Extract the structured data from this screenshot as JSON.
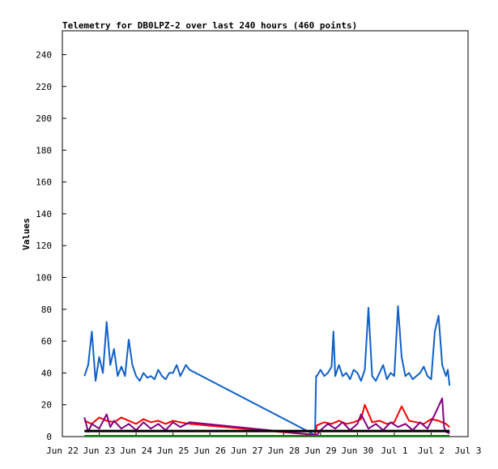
{
  "chart_data": {
    "type": "line",
    "title": "Telemetry for DB0LPZ-2 over last 240 hours (460 points)",
    "xlabel": "",
    "ylabel": "Values",
    "ylim": [
      0,
      255
    ],
    "yticks": [
      0,
      20,
      40,
      60,
      80,
      100,
      120,
      140,
      160,
      180,
      200,
      220,
      240
    ],
    "xlim": [
      "Jun 22",
      "Jul 3"
    ],
    "x_ticks": [
      "Jun 22",
      "Jun 23",
      "Jun 24",
      "Jun 25",
      "Jun 26",
      "Jun 27",
      "Jun 28",
      "Jun 29",
      "Jun 30",
      "Jul 1",
      "Jul 2",
      "Jul 3"
    ],
    "grid": false,
    "legend": "none",
    "series": [
      {
        "color": "#1060c8",
        "x": [
          0.6,
          0.7,
          0.8,
          0.9,
          1.0,
          1.1,
          1.2,
          1.3,
          1.4,
          1.5,
          1.6,
          1.7,
          1.8,
          1.9,
          2.0,
          2.1,
          2.2,
          2.3,
          2.4,
          2.5,
          2.6,
          2.7,
          2.8,
          2.9,
          3.0,
          3.1,
          3.2,
          3.35,
          3.45,
          6.85,
          6.88,
          6.9,
          7.0,
          7.1,
          7.2,
          7.3,
          7.35,
          7.4,
          7.5,
          7.6,
          7.7,
          7.8,
          7.9,
          8.0,
          8.1,
          8.2,
          8.3,
          8.4,
          8.5,
          8.6,
          8.7,
          8.8,
          8.9,
          9.0,
          9.1,
          9.2,
          9.3,
          9.4,
          9.5,
          9.6,
          9.7,
          9.8,
          9.9,
          10.0,
          10.1,
          10.2,
          10.3,
          10.4,
          10.45,
          10.5
        ],
        "y": [
          38,
          45,
          66,
          35,
          50,
          40,
          72,
          45,
          55,
          38,
          44,
          38,
          61,
          45,
          38,
          35,
          40,
          37,
          38,
          36,
          42,
          38,
          36,
          40,
          40,
          45,
          38,
          45,
          42,
          1,
          38,
          38,
          42,
          38,
          40,
          44,
          66,
          38,
          45,
          38,
          40,
          36,
          42,
          40,
          35,
          42,
          81,
          38,
          35,
          40,
          45,
          36,
          40,
          38,
          82,
          50,
          38,
          40,
          36,
          38,
          40,
          44,
          38,
          36,
          66,
          76,
          45,
          38,
          42,
          32
        ]
      },
      {
        "color": "#ff0000",
        "x": [
          0.6,
          0.8,
          1.0,
          1.2,
          1.4,
          1.6,
          1.8,
          2.0,
          2.2,
          2.4,
          2.6,
          2.8,
          3.0,
          3.2,
          3.45,
          6.85,
          6.9,
          7.1,
          7.3,
          7.5,
          7.7,
          7.9,
          8.1,
          8.2,
          8.4,
          8.6,
          8.8,
          9.0,
          9.2,
          9.4,
          9.6,
          9.8,
          10.0,
          10.2,
          10.4,
          10.5
        ],
        "y": [
          10,
          8,
          12,
          10,
          9,
          12,
          10,
          8,
          11,
          9,
          10,
          8,
          10,
          9,
          8,
          1,
          7,
          9,
          8,
          10,
          8,
          9,
          11,
          20,
          9,
          10,
          8,
          9,
          19,
          10,
          9,
          8,
          11,
          10,
          8,
          6
        ]
      },
      {
        "color": "#800080",
        "x": [
          0.6,
          0.7,
          0.8,
          1.0,
          1.2,
          1.3,
          1.4,
          1.6,
          1.8,
          2.0,
          2.2,
          2.4,
          2.6,
          2.8,
          3.0,
          3.2,
          3.45,
          6.9,
          7.0,
          7.2,
          7.4,
          7.6,
          7.8,
          8.0,
          8.1,
          8.3,
          8.5,
          8.7,
          8.9,
          9.1,
          9.3,
          9.5,
          9.7,
          9.9,
          10.1,
          10.3,
          10.35,
          10.4,
          10.5
        ],
        "y": [
          12,
          3,
          8,
          5,
          14,
          6,
          10,
          5,
          8,
          4,
          9,
          5,
          8,
          4,
          9,
          6,
          9,
          1,
          4,
          8,
          5,
          9,
          4,
          8,
          14,
          5,
          8,
          4,
          9,
          6,
          8,
          4,
          9,
          5,
          14,
          24,
          6,
          3,
          2
        ]
      },
      {
        "color": "#008000",
        "x": [
          0.6,
          10.5
        ],
        "y": [
          0.5,
          0.5
        ]
      },
      {
        "color": "#000000",
        "x": [
          0.6,
          3.45,
          6.85,
          10.5
        ],
        "y": [
          3.5,
          3.5,
          3.5,
          3.5
        ]
      }
    ]
  }
}
